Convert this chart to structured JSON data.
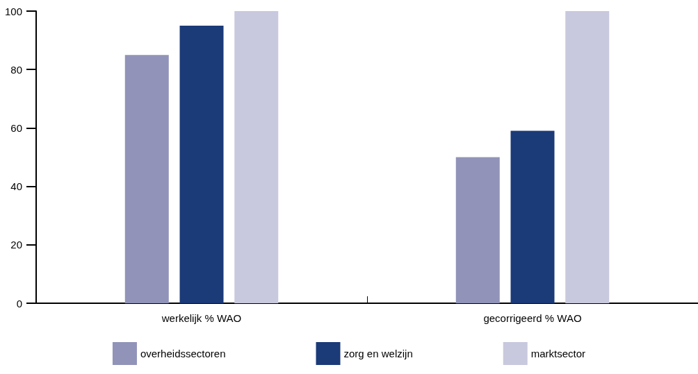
{
  "chart_data": {
    "type": "bar",
    "categories": [
      "werkelijk % WAO",
      "gecorrigeerd % WAO"
    ],
    "series": [
      {
        "name": "overheidssectoren",
        "color": "#9193b8",
        "values": [
          85,
          50
        ]
      },
      {
        "name": "zorg en welzijn",
        "color": "#1b3a78",
        "values": [
          95,
          59
        ]
      },
      {
        "name": "marktsector",
        "color": "#c8c8de",
        "values": [
          100,
          100
        ]
      }
    ],
    "ylim": [
      0,
      100
    ],
    "yticks": [
      0,
      20,
      40,
      60,
      80,
      100
    ],
    "grid": false,
    "legend": "bottom"
  }
}
